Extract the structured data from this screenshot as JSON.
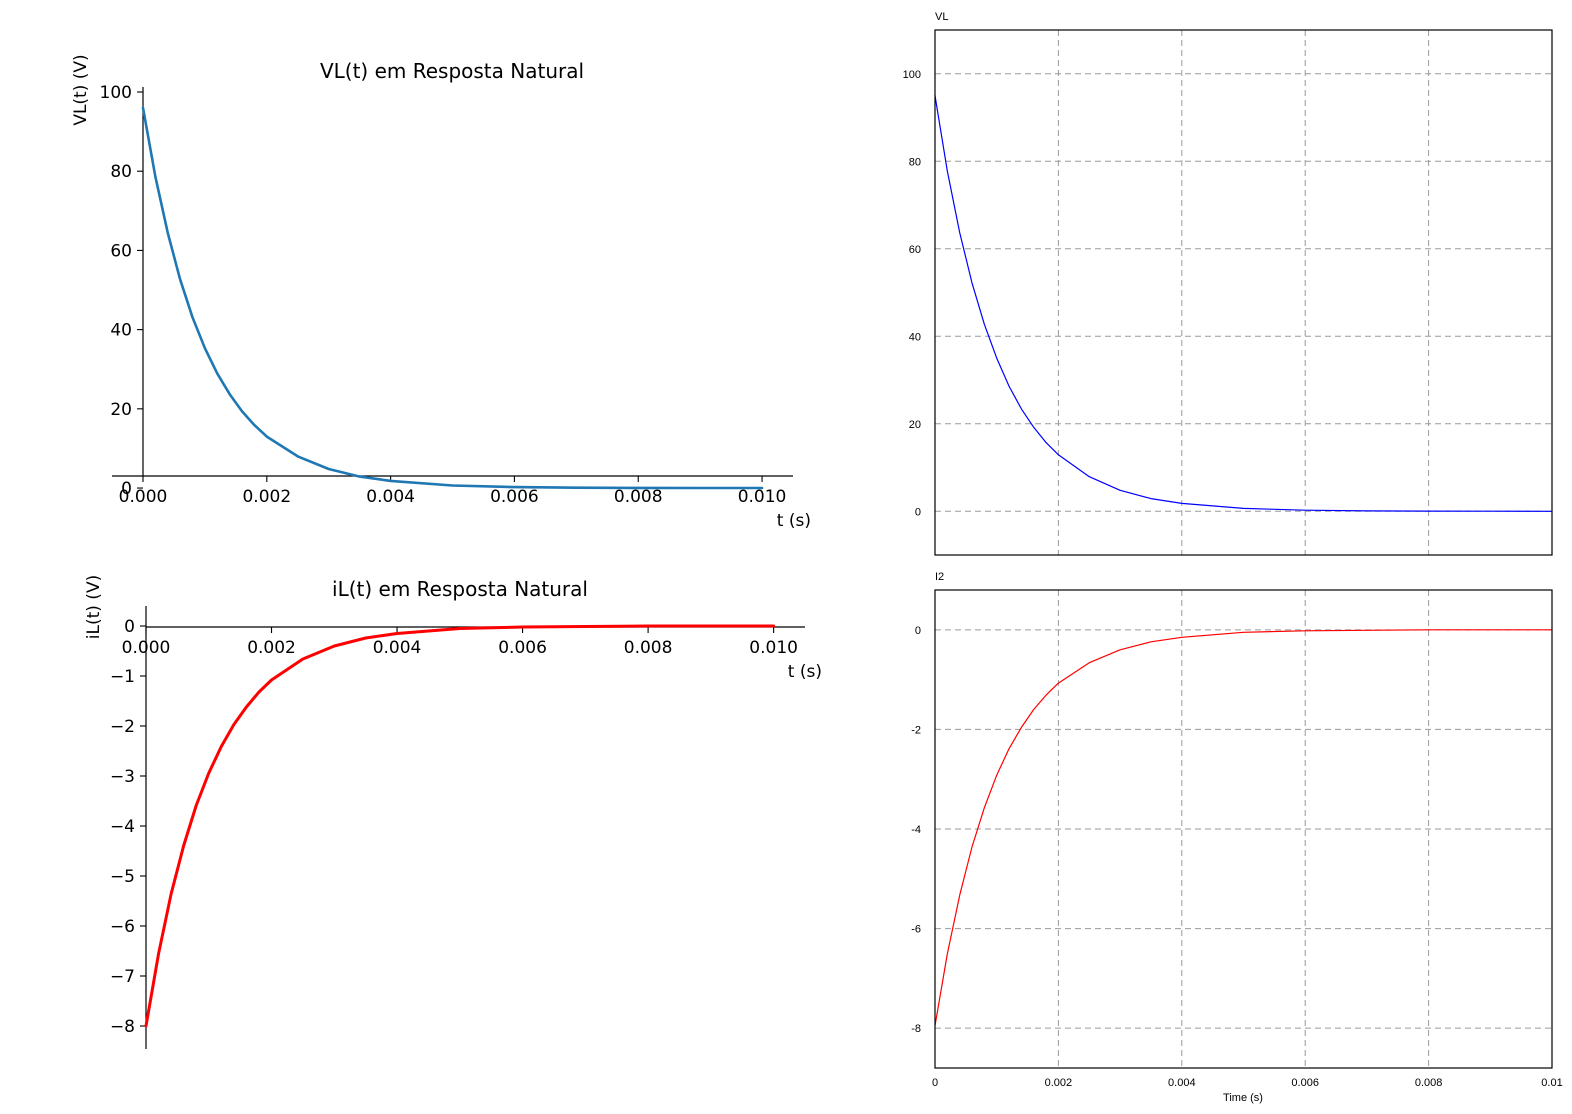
{
  "chart_data": [
    {
      "id": "vl_mpl",
      "type": "line",
      "title": "VL(t) em Resposta Natural",
      "xlabel": "t (s)",
      "ylabel": "VL(t) (V)",
      "xlim": [
        0,
        0.0105
      ],
      "ylim": [
        -1,
        100
      ],
      "xticks": [
        0,
        0.002,
        0.004,
        0.006,
        0.008,
        0.01
      ],
      "xtick_labels": [
        "0.000",
        "0.002",
        "0.004",
        "0.006",
        "0.008",
        "0.010"
      ],
      "yticks": [
        0,
        20,
        40,
        60,
        80,
        100
      ],
      "ytick_labels": [
        "0",
        "20",
        "40",
        "60",
        "80",
        "100"
      ],
      "grid": false,
      "spines": "centered-axes",
      "series": [
        {
          "color": "#1f77b4",
          "x": [
            0,
            0.0002,
            0.0004,
            0.0006,
            0.0008,
            0.001,
            0.0012,
            0.0014,
            0.0016,
            0.0018,
            0.002,
            0.0025,
            0.003,
            0.0035,
            0.004,
            0.005,
            0.006,
            0.007,
            0.008,
            0.009,
            0.01
          ],
          "y": [
            96.0,
            78.6,
            64.4,
            52.7,
            43.1,
            35.3,
            28.9,
            23.7,
            19.4,
            15.9,
            13.0,
            8.0,
            4.8,
            2.9,
            1.8,
            0.65,
            0.24,
            0.09,
            0.03,
            0.01,
            0.0
          ]
        }
      ]
    },
    {
      "id": "il_mpl",
      "type": "line",
      "title": "iL(t) em Resposta Natural",
      "xlabel": "t (s)",
      "ylabel": "iL(t) (V)",
      "xlim": [
        0,
        0.0105
      ],
      "ylim": [
        -8.4,
        0.4
      ],
      "xticks": [
        0,
        0.002,
        0.004,
        0.006,
        0.008,
        0.01
      ],
      "xtick_labels": [
        "0.000",
        "0.002",
        "0.004",
        "0.006",
        "0.008",
        "0.010"
      ],
      "yticks": [
        0,
        -1,
        -2,
        -3,
        -4,
        -5,
        -6,
        -7,
        -8
      ],
      "ytick_labels": [
        "0",
        "−1",
        "−2",
        "−3",
        "−4",
        "−5",
        "−6",
        "−7",
        "−8"
      ],
      "grid": false,
      "spines": "centered-axes",
      "series": [
        {
          "color": "#ff0000",
          "x": [
            0,
            0.0002,
            0.0004,
            0.0006,
            0.0008,
            0.001,
            0.0012,
            0.0014,
            0.0016,
            0.0018,
            0.002,
            0.0025,
            0.003,
            0.0035,
            0.004,
            0.005,
            0.006,
            0.007,
            0.008,
            0.009,
            0.01
          ],
          "y": [
            -8.0,
            -6.55,
            -5.36,
            -4.39,
            -3.59,
            -2.94,
            -2.41,
            -1.97,
            -1.62,
            -1.32,
            -1.08,
            -0.66,
            -0.4,
            -0.24,
            -0.15,
            -0.05,
            -0.02,
            -0.01,
            0.0,
            0.0,
            0.0
          ]
        }
      ]
    },
    {
      "id": "vl_psim",
      "type": "line",
      "title": "VL",
      "title_color": "#0000ff",
      "xlabel": "",
      "ylabel": "",
      "xlim": [
        0,
        0.01
      ],
      "ylim": [
        -10,
        110
      ],
      "xticks": [
        0,
        0.002,
        0.004,
        0.006,
        0.008,
        0.01
      ],
      "yticks": [
        0,
        20,
        40,
        60,
        80,
        100
      ],
      "ytick_labels": [
        "0",
        "20",
        "40",
        "60",
        "80",
        "100"
      ],
      "grid": true,
      "series": [
        {
          "color": "#0000ff",
          "x": [
            0,
            0.0002,
            0.0004,
            0.0006,
            0.0008,
            0.001,
            0.0012,
            0.0014,
            0.0016,
            0.0018,
            0.002,
            0.0025,
            0.003,
            0.0035,
            0.004,
            0.005,
            0.006,
            0.007,
            0.008,
            0.009,
            0.01
          ],
          "y": [
            95.0,
            77.8,
            63.7,
            52.2,
            42.7,
            35.0,
            28.6,
            23.4,
            19.2,
            15.7,
            12.9,
            7.9,
            4.8,
            2.9,
            1.8,
            0.65,
            0.24,
            0.09,
            0.03,
            0.01,
            0.0
          ]
        }
      ]
    },
    {
      "id": "i2_psim",
      "type": "line",
      "title": "I2",
      "title_color": "#ff0000",
      "xlabel": "Time (s)",
      "ylabel": "",
      "xlim": [
        0,
        0.01
      ],
      "ylim": [
        -8.8,
        0.8
      ],
      "xticks": [
        0,
        0.002,
        0.004,
        0.006,
        0.008,
        0.01
      ],
      "xtick_labels": [
        "0",
        "0.002",
        "0.004",
        "0.006",
        "0.008",
        "0.01"
      ],
      "yticks": [
        0,
        -2,
        -4,
        -6,
        -8
      ],
      "ytick_labels": [
        "0",
        "-2",
        "-4",
        "-6",
        "-8"
      ],
      "grid": true,
      "series": [
        {
          "color": "#ff0000",
          "x": [
            0,
            0.0002,
            0.0004,
            0.0006,
            0.0008,
            0.001,
            0.0012,
            0.0014,
            0.0016,
            0.0018,
            0.002,
            0.0025,
            0.003,
            0.0035,
            0.004,
            0.005,
            0.006,
            0.007,
            0.008,
            0.009,
            0.01
          ],
          "y": [
            -7.95,
            -6.51,
            -5.33,
            -4.36,
            -3.57,
            -2.92,
            -2.39,
            -1.96,
            -1.6,
            -1.31,
            -1.07,
            -0.66,
            -0.4,
            -0.24,
            -0.15,
            -0.05,
            -0.02,
            -0.01,
            0.0,
            0.0,
            0.0
          ]
        }
      ]
    }
  ]
}
